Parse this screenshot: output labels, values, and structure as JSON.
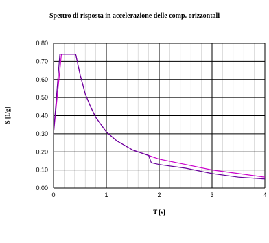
{
  "chart_data": {
    "type": "line",
    "title": "Spettro di risposta in accelerazione delle comp. orizzontali",
    "xlabel": "T [s]",
    "ylabel": "S [1/g]",
    "xlim": [
      0,
      4
    ],
    "ylim": [
      0,
      0.8
    ],
    "x_ticks": [
      "0",
      "1",
      "2",
      "3",
      "4"
    ],
    "y_ticks": [
      "0.00",
      "0.10",
      "0.20",
      "0.30",
      "0.40",
      "0.50",
      "0.60",
      "0.70",
      "0.80"
    ],
    "grid": true,
    "legend": "none",
    "series": [
      {
        "color": "#cc00cc",
        "points": [
          [
            0,
            0.3
          ],
          [
            0.15,
            0.74
          ],
          [
            0.42,
            0.74
          ],
          [
            0.5,
            0.63
          ],
          [
            0.6,
            0.52
          ],
          [
            0.7,
            0.45
          ],
          [
            0.8,
            0.39
          ],
          [
            1.0,
            0.31
          ],
          [
            1.2,
            0.26
          ],
          [
            1.5,
            0.21
          ],
          [
            1.8,
            0.18
          ],
          [
            2.0,
            0.16
          ],
          [
            2.5,
            0.13
          ],
          [
            3.0,
            0.1
          ],
          [
            3.5,
            0.08
          ],
          [
            4.0,
            0.06
          ]
        ]
      },
      {
        "color": "#660099",
        "points": [
          [
            0,
            0.3
          ],
          [
            0.12,
            0.74
          ],
          [
            0.42,
            0.74
          ],
          [
            0.5,
            0.63
          ],
          [
            0.6,
            0.52
          ],
          [
            0.7,
            0.45
          ],
          [
            0.8,
            0.39
          ],
          [
            1.0,
            0.31
          ],
          [
            1.2,
            0.26
          ],
          [
            1.5,
            0.21
          ],
          [
            1.8,
            0.18
          ],
          [
            1.85,
            0.14
          ],
          [
            2.0,
            0.13
          ],
          [
            2.5,
            0.11
          ],
          [
            3.0,
            0.08
          ],
          [
            3.5,
            0.06
          ],
          [
            4.0,
            0.05
          ]
        ]
      }
    ]
  }
}
